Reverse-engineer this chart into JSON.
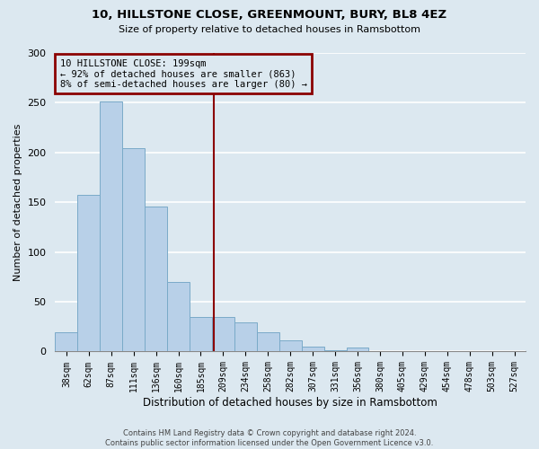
{
  "title": "10, HILLSTONE CLOSE, GREENMOUNT, BURY, BL8 4EZ",
  "subtitle": "Size of property relative to detached houses in Ramsbottom",
  "xlabel": "Distribution of detached houses by size in Ramsbottom",
  "ylabel": "Number of detached properties",
  "bar_color": "#b8d0e8",
  "bar_edge_color": "#7aaac8",
  "background_color": "#dce8f0",
  "grid_color": "#ffffff",
  "bin_labels": [
    "38sqm",
    "62sqm",
    "87sqm",
    "111sqm",
    "136sqm",
    "160sqm",
    "185sqm",
    "209sqm",
    "234sqm",
    "258sqm",
    "282sqm",
    "307sqm",
    "331sqm",
    "356sqm",
    "380sqm",
    "405sqm",
    "429sqm",
    "454sqm",
    "478sqm",
    "503sqm",
    "527sqm"
  ],
  "bin_values": [
    19,
    157,
    251,
    204,
    146,
    70,
    35,
    35,
    29,
    19,
    11,
    5,
    1,
    4,
    0,
    0,
    0,
    0,
    0,
    0,
    0
  ],
  "ylim": [
    0,
    300
  ],
  "yticks": [
    0,
    50,
    100,
    150,
    200,
    250,
    300
  ],
  "property_line_color": "#8b0000",
  "annotation_title": "10 HILLSTONE CLOSE: 199sqm",
  "annotation_line1": "← 92% of detached houses are smaller (863)",
  "annotation_line2": "8% of semi-detached houses are larger (80) →",
  "annotation_box_color": "#8b0000",
  "footer1": "Contains HM Land Registry data © Crown copyright and database right 2024.",
  "footer2": "Contains public sector information licensed under the Open Government Licence v3.0."
}
